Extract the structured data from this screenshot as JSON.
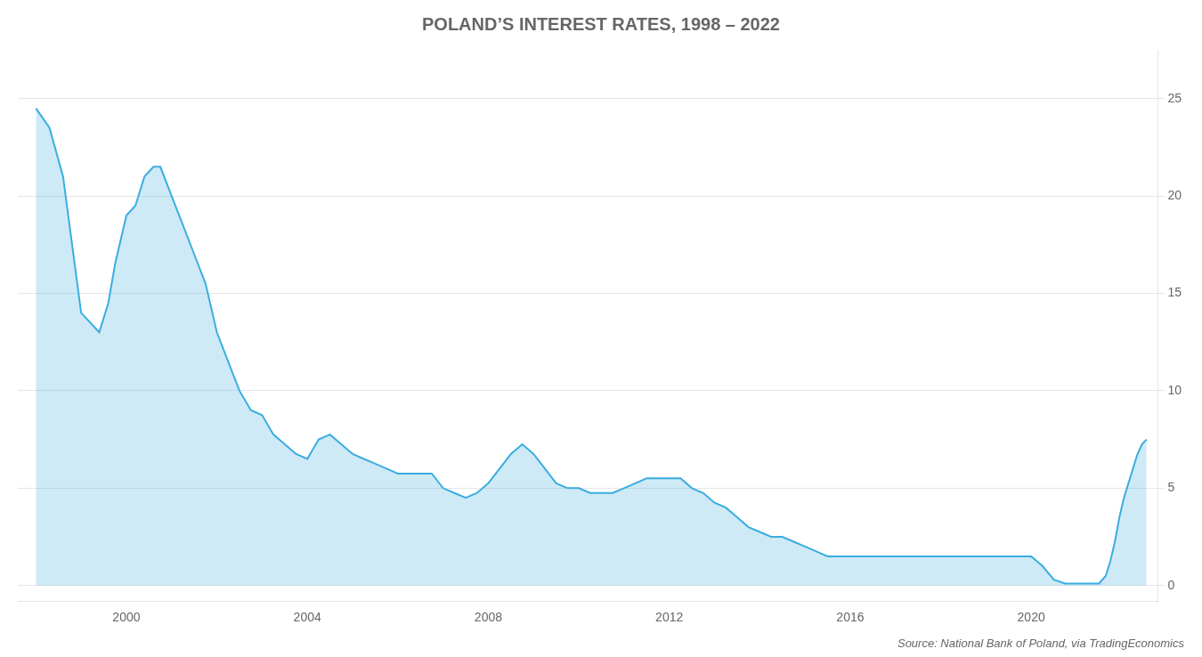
{
  "chart_data": {
    "type": "area",
    "title": "POLAND’S INTEREST RATES, 1998 – 2022",
    "annotations": [
      "Source: National Bank of Poland, via TradingEconomics"
    ],
    "color": "#3AADE0",
    "xlim": [
      1997.6,
      2022.8
    ],
    "xticks": [
      2000,
      2004,
      2008,
      2012,
      2016,
      2020
    ],
    "ylim": [
      -0.8,
      27.5
    ],
    "yticks": [
      0,
      5,
      10,
      15,
      20,
      25
    ],
    "grid": "y",
    "x": [
      1998.0,
      1998.3,
      1998.6,
      1999.0,
      1999.4,
      1999.6,
      1999.75,
      2000.0,
      2000.2,
      2000.4,
      2000.6,
      2000.75,
      2001.0,
      2001.25,
      2001.5,
      2001.75,
      2002.0,
      2002.25,
      2002.5,
      2002.75,
      2003.0,
      2003.25,
      2003.5,
      2003.75,
      2004.0,
      2004.25,
      2004.5,
      2004.75,
      2005.0,
      2005.25,
      2005.5,
      2005.75,
      2006.0,
      2006.25,
      2006.5,
      2006.75,
      2007.0,
      2007.25,
      2007.5,
      2007.75,
      2008.0,
      2008.25,
      2008.5,
      2008.75,
      2009.0,
      2009.25,
      2009.5,
      2009.75,
      2010.0,
      2010.25,
      2010.5,
      2010.75,
      2011.0,
      2011.25,
      2011.5,
      2011.75,
      2012.0,
      2012.25,
      2012.5,
      2012.75,
      2013.0,
      2013.25,
      2013.5,
      2013.75,
      2014.0,
      2014.25,
      2014.5,
      2014.75,
      2015.0,
      2015.25,
      2015.5,
      2015.75,
      2016.0,
      2016.5,
      2017.0,
      2017.5,
      2018.0,
      2018.5,
      2019.0,
      2019.5,
      2020.0,
      2020.25,
      2020.5,
      2020.75,
      2021.0,
      2021.25,
      2021.5,
      2021.65,
      2021.75,
      2021.85,
      2021.95,
      2022.05,
      2022.15,
      2022.25,
      2022.35,
      2022.45,
      2022.55
    ],
    "values": [
      24.5,
      23.5,
      21.0,
      14.0,
      13.0,
      14.5,
      16.5,
      19.0,
      19.5,
      21.0,
      21.5,
      21.5,
      20.0,
      18.5,
      17.0,
      15.5,
      13.0,
      11.5,
      10.0,
      9.0,
      8.75,
      7.75,
      7.25,
      6.75,
      6.5,
      7.5,
      7.75,
      7.25,
      6.75,
      6.5,
      6.25,
      6.0,
      5.75,
      5.75,
      5.75,
      5.75,
      5.0,
      4.75,
      4.5,
      4.75,
      5.25,
      6.0,
      6.75,
      7.25,
      6.75,
      6.0,
      5.25,
      5.0,
      5.0,
      4.75,
      4.75,
      4.75,
      5.0,
      5.25,
      5.5,
      5.5,
      5.5,
      5.5,
      5.0,
      4.75,
      4.25,
      4.0,
      3.5,
      3.0,
      2.75,
      2.5,
      2.5,
      2.25,
      2.0,
      1.75,
      1.5,
      1.5,
      1.5,
      1.5,
      1.5,
      1.5,
      1.5,
      1.5,
      1.5,
      1.5,
      1.5,
      1.0,
      0.3,
      0.1,
      0.1,
      0.1,
      0.1,
      0.5,
      1.25,
      2.25,
      3.5,
      4.5,
      5.25,
      6.0,
      6.75,
      7.25,
      7.5
    ]
  }
}
